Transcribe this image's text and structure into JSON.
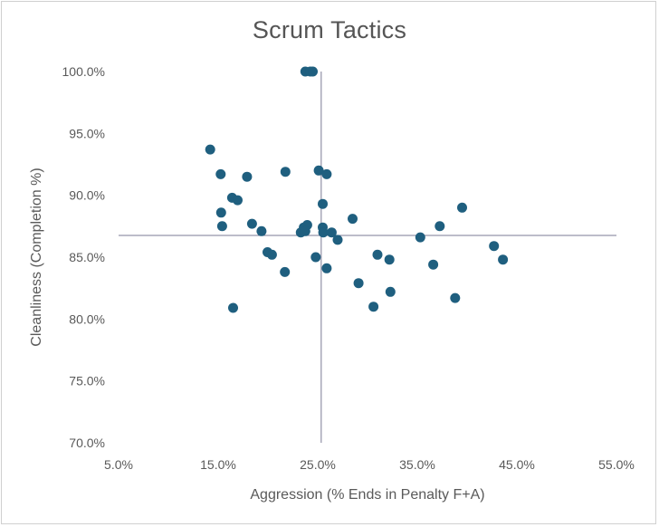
{
  "chart_data": {
    "type": "scatter",
    "title": "Scrum Tactics",
    "xlabel": "Aggression (% Ends in Penalty F+A)",
    "ylabel": "Cleanliness (Completion %)",
    "xlim": [
      0.05,
      0.55
    ],
    "ylim": [
      0.7,
      1.0
    ],
    "x_ticks": [
      0.05,
      0.15,
      0.25,
      0.35,
      0.45,
      0.55
    ],
    "x_tick_labels": [
      "5.0%",
      "15.0%",
      "25.0%",
      "35.0%",
      "45.0%",
      "55.0%"
    ],
    "y_ticks": [
      0.7,
      0.75,
      0.8,
      0.85,
      0.9,
      0.95,
      1.0
    ],
    "y_tick_labels": [
      "70.0%",
      "75.0%",
      "80.0%",
      "85.0%",
      "90.0%",
      "95.0%",
      "100.0%"
    ],
    "reference_lines": {
      "x": 0.2535,
      "y": 0.8676
    },
    "grid": false,
    "marker_color": "#1f5f7f",
    "points": [
      {
        "x": 0.2375,
        "y": 1.0
      },
      {
        "x": 0.2425,
        "y": 1.0
      },
      {
        "x": 0.245,
        "y": 1.0
      },
      {
        "x": 0.142,
        "y": 0.937
      },
      {
        "x": 0.1525,
        "y": 0.917
      },
      {
        "x": 0.179,
        "y": 0.915
      },
      {
        "x": 0.2175,
        "y": 0.919
      },
      {
        "x": 0.251,
        "y": 0.92
      },
      {
        "x": 0.259,
        "y": 0.917
      },
      {
        "x": 0.164,
        "y": 0.898
      },
      {
        "x": 0.1695,
        "y": 0.896
      },
      {
        "x": 0.153,
        "y": 0.886
      },
      {
        "x": 0.255,
        "y": 0.893
      },
      {
        "x": 0.395,
        "y": 0.89
      },
      {
        "x": 0.285,
        "y": 0.881
      },
      {
        "x": 0.154,
        "y": 0.875
      },
      {
        "x": 0.184,
        "y": 0.877
      },
      {
        "x": 0.236,
        "y": 0.874
      },
      {
        "x": 0.2395,
        "y": 0.876
      },
      {
        "x": 0.3725,
        "y": 0.875
      },
      {
        "x": 0.1935,
        "y": 0.871
      },
      {
        "x": 0.233,
        "y": 0.87
      },
      {
        "x": 0.2375,
        "y": 0.871
      },
      {
        "x": 0.255,
        "y": 0.874
      },
      {
        "x": 0.2555,
        "y": 0.87
      },
      {
        "x": 0.264,
        "y": 0.87
      },
      {
        "x": 0.27,
        "y": 0.864
      },
      {
        "x": 0.353,
        "y": 0.866
      },
      {
        "x": 0.427,
        "y": 0.859
      },
      {
        "x": 0.1995,
        "y": 0.854
      },
      {
        "x": 0.204,
        "y": 0.852
      },
      {
        "x": 0.248,
        "y": 0.85
      },
      {
        "x": 0.31,
        "y": 0.852
      },
      {
        "x": 0.322,
        "y": 0.848
      },
      {
        "x": 0.436,
        "y": 0.848
      },
      {
        "x": 0.259,
        "y": 0.841
      },
      {
        "x": 0.366,
        "y": 0.844
      },
      {
        "x": 0.217,
        "y": 0.838
      },
      {
        "x": 0.291,
        "y": 0.829
      },
      {
        "x": 0.323,
        "y": 0.822
      },
      {
        "x": 0.388,
        "y": 0.817
      },
      {
        "x": 0.165,
        "y": 0.809
      },
      {
        "x": 0.306,
        "y": 0.81
      }
    ]
  }
}
